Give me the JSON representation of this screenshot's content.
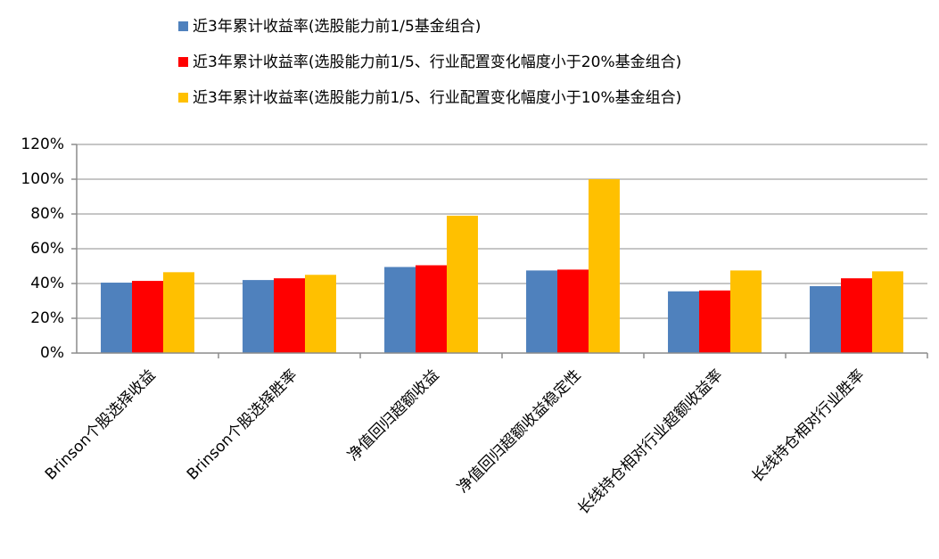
{
  "chart_data": {
    "type": "bar",
    "categories": [
      "Brinson个股选择收益",
      "Brinson个股选择胜率",
      "净值回归超额收益",
      "净值回归超额收益稳定性",
      "长线持仓相对行业超额收益率",
      "长线持仓相对行业胜率"
    ],
    "series": [
      {
        "name": "近3年累计收益率(选股能力前1/5基金组合)",
        "color": "#4f81bd",
        "values": [
          40.5,
          42,
          49.5,
          47.5,
          35.5,
          38.5
        ]
      },
      {
        "name": "近3年累计收益率(选股能力前1/5、行业配置变化幅度小于20%基金组合)",
        "color": "#ff0000",
        "values": [
          41.5,
          43,
          50.5,
          48,
          36,
          43
        ]
      },
      {
        "name": "近3年累计收益率(选股能力前1/5、行业配置变化幅度小于10%基金组合)",
        "color": "#ffc000",
        "values": [
          46.5,
          45,
          79,
          100,
          47.5,
          47
        ]
      }
    ],
    "ylim": [
      0,
      120
    ],
    "yticks": [
      {
        "value": 0,
        "label": "0%"
      },
      {
        "value": 20,
        "label": "20%"
      },
      {
        "value": 40,
        "label": "40%"
      },
      {
        "value": 60,
        "label": "60%"
      },
      {
        "value": 80,
        "label": "80%"
      },
      {
        "value": 100,
        "label": "100%"
      },
      {
        "value": 120,
        "label": "120%"
      }
    ],
    "grid": true
  }
}
